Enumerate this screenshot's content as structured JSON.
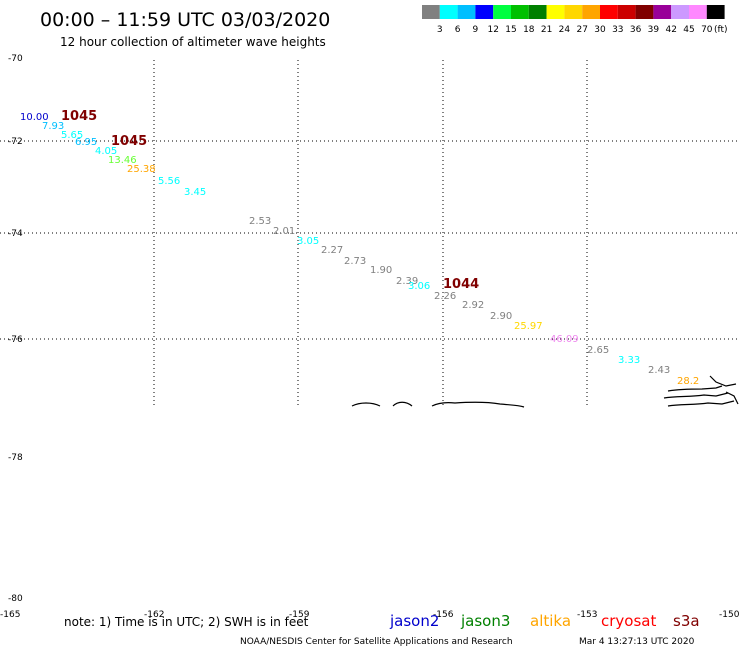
{
  "header": {
    "title": "00:00 – 11:59 UTC 03/03/2020",
    "subtitle": "12 hour collection of altimeter wave heights"
  },
  "colorbar": {
    "labels": [
      "3",
      "6",
      "9",
      "12",
      "15",
      "18",
      "21",
      "24",
      "27",
      "30",
      "33",
      "36",
      "39",
      "42",
      "45",
      "70"
    ],
    "unit": "(ft)",
    "colors": [
      "#808080",
      "#00ffff",
      "#00bfff",
      "#0000ff",
      "#00ff40",
      "#00c000",
      "#008000",
      "#ffff00",
      "#ffd700",
      "#ffa500",
      "#ff0000",
      "#cc0000",
      "#800000",
      "#990099",
      "#cc99ff",
      "#ff88ff",
      "#000000"
    ]
  },
  "axes": {
    "lat_labels": [
      "-70",
      "-72",
      "-74",
      "-76",
      "-78",
      "-80"
    ],
    "lon_labels": [
      "-165",
      "-162",
      "-159",
      "-156",
      "-153",
      "-150"
    ]
  },
  "observations": [
    {
      "text": "10.00",
      "color": "#0000cc"
    },
    {
      "text": "1045",
      "color": "#800000"
    },
    {
      "text": "7.93",
      "color": "#00bfff"
    },
    {
      "text": "5.65",
      "color": "#00ffff"
    },
    {
      "text": "6.95",
      "color": "#00bfff"
    },
    {
      "text": "1045",
      "color": "#800000"
    },
    {
      "text": "4.05",
      "color": "#00ffff"
    },
    {
      "text": "13.46",
      "color": "#66ff33"
    },
    {
      "text": "25.38",
      "color": "#ffa500"
    },
    {
      "text": "5.56",
      "color": "#00ffff"
    },
    {
      "text": "3.45",
      "color": "#00ffff"
    },
    {
      "text": "2.53",
      "color": "#808080"
    },
    {
      "text": "2.01",
      "color": "#808080"
    },
    {
      "text": "3.05",
      "color": "#00ffff"
    },
    {
      "text": "2.27",
      "color": "#808080"
    },
    {
      "text": "2.73",
      "color": "#808080"
    },
    {
      "text": "1.90",
      "color": "#808080"
    },
    {
      "text": "2.39",
      "color": "#808080"
    },
    {
      "text": "3.06",
      "color": "#00ffff"
    },
    {
      "text": "1044",
      "color": "#800000"
    },
    {
      "text": "2.26",
      "color": "#808080"
    },
    {
      "text": "2.92",
      "color": "#808080"
    },
    {
      "text": "2.90",
      "color": "#808080"
    },
    {
      "text": "25.97",
      "color": "#ffd700"
    },
    {
      "text": "46.09",
      "color": "#ee88ee"
    },
    {
      "text": "2.65",
      "color": "#808080"
    },
    {
      "text": "3.33",
      "color": "#00ffff"
    },
    {
      "text": "2.43",
      "color": "#808080"
    },
    {
      "text": "28.2",
      "color": "#ffa500"
    }
  ],
  "footer": {
    "note": "note: 1) Time is in UTC; 2) SWH is in feet",
    "satellites": [
      {
        "name": "jason2",
        "color": "#0000cc"
      },
      {
        "name": "jason3",
        "color": "#008000"
      },
      {
        "name": "altika",
        "color": "#ffa500"
      },
      {
        "name": "cryosat",
        "color": "#ff0000"
      },
      {
        "name": "s3a",
        "color": "#800000"
      }
    ],
    "credit": "NOAA/NESDIS Center for Satellite Applications and Research",
    "timestamp": "Mar  4 13:27:13 UTC 2020"
  }
}
